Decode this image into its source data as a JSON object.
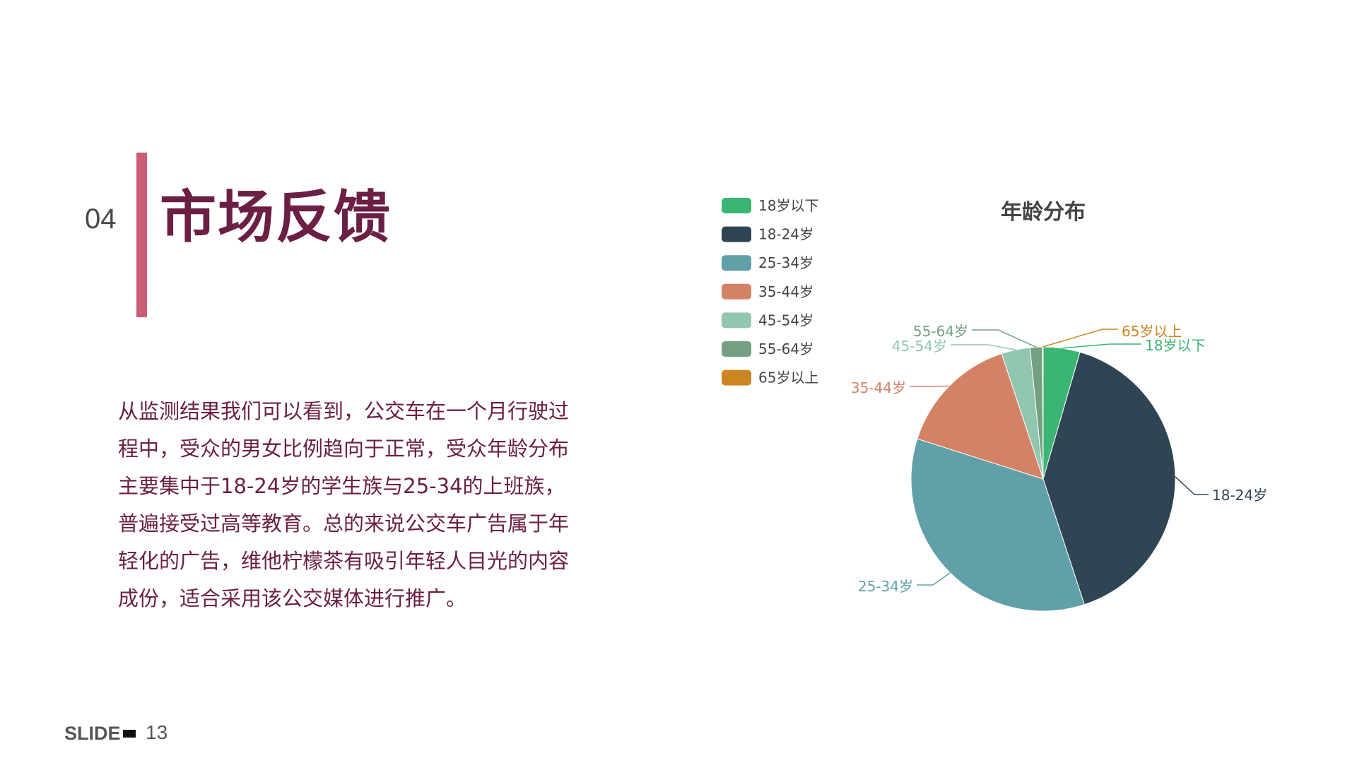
{
  "slide": {
    "section_number": "04",
    "title": "市场反馈",
    "body": "从监测结果我们可以看到，公交车在一个月行驶过程中，受众的男女比例趋向于正常，受众年龄分布主要集中于18-24岁的学生族与25-34的上班族，普遍接受过高等教育。总的来说公交车广告属于年轻化的广告，维他柠檬茶有吸引年轻人目光的内容成份，适合采用该公交媒体进行推广。",
    "footer_label": "SLIDE",
    "footer_number": "13"
  },
  "colors": {
    "accent_bar": "#cb5d74",
    "title": "#6b1f45"
  },
  "chart_data": {
    "type": "pie",
    "title": "年龄分布",
    "legend_position": "top-left",
    "categories": [
      "18岁以下",
      "18-24岁",
      "25-34岁",
      "35-44岁",
      "45-54岁",
      "55-64岁",
      "65岁以上"
    ],
    "values": [
      4.5,
      40.5,
      35,
      15,
      3.5,
      1.5,
      0.1
    ],
    "colors": [
      "#3ab573",
      "#2f4554",
      "#61a0a8",
      "#d48265",
      "#91c7ae",
      "#749f83",
      "#ca8622"
    ]
  }
}
